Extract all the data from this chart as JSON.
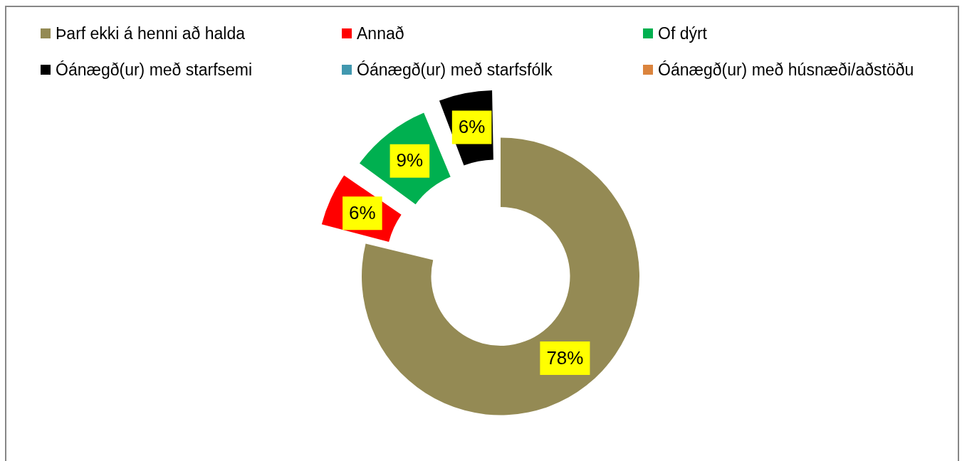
{
  "chart_data": {
    "type": "donut",
    "categories": [
      "Þarf ekki á henni að halda",
      "Annað",
      "Of dýrt",
      "Óánægð(ur) með starfsemi",
      "Óánægð(ur) með starfsfólk",
      "Óánægð(ur) með húsnæði/aðstöðu"
    ],
    "values": [
      78,
      6,
      9,
      6,
      0,
      0
    ],
    "colors": [
      "#948a54",
      "#ff0000",
      "#00b050",
      "#000000",
      "#4198af",
      "#db843d"
    ],
    "value_labels": [
      "78%",
      "6%",
      "9%",
      "6%",
      null,
      null
    ],
    "legend": "top"
  }
}
